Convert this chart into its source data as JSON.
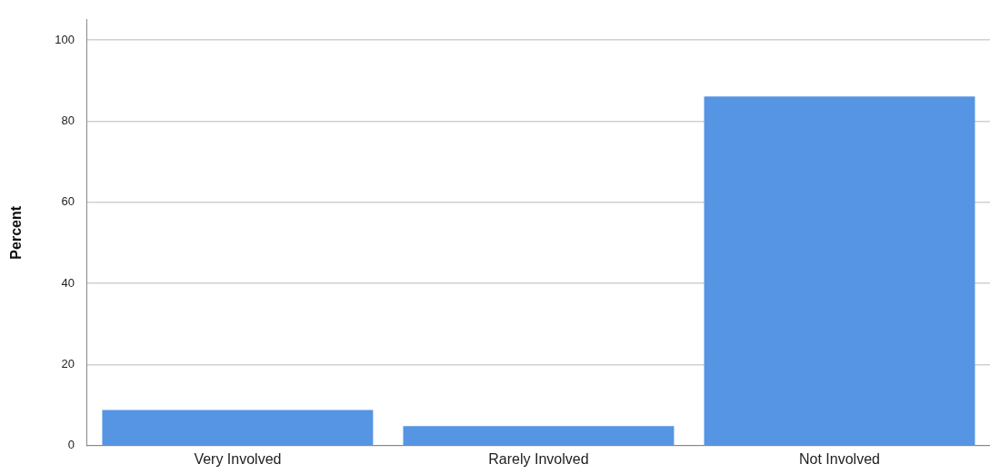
{
  "chart_data": {
    "type": "bar",
    "ylabel": "Percent",
    "categories": [
      "Very Involved",
      "Rarely Involved",
      "Not Involved"
    ],
    "values": [
      8.8,
      4.8,
      86.1
    ],
    "color": "#5595e3",
    "ylim": [
      0,
      105
    ],
    "yticks": [
      0,
      20,
      40,
      60,
      80,
      100
    ],
    "grid": "y",
    "legend": false
  }
}
